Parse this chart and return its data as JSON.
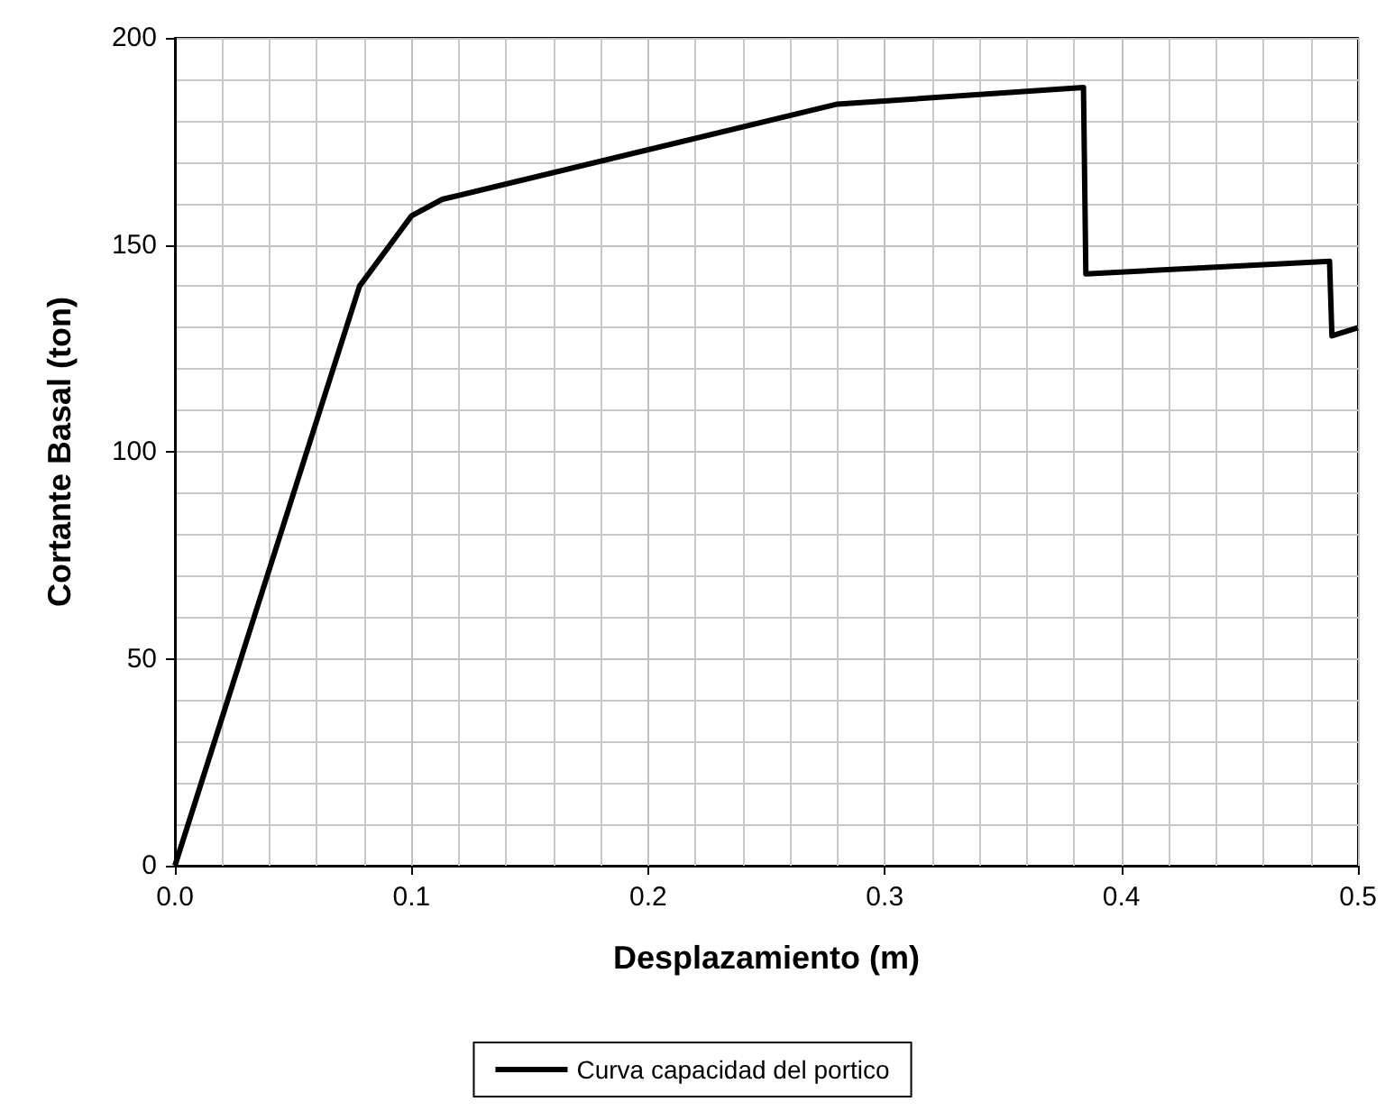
{
  "chart_data": {
    "type": "line",
    "xlabel": "Desplazamiento (m)",
    "ylabel": "Cortante Basal (ton)",
    "series": [
      {
        "name": "Curva capacidad del portico",
        "color": "#000000",
        "x": [
          0,
          0.078,
          0.1,
          0.113,
          0.28,
          0.384,
          0.385,
          0.488,
          0.489,
          0.5
        ],
        "values": [
          0,
          140,
          157,
          161,
          184,
          188,
          143,
          146,
          128,
          130
        ]
      }
    ],
    "xlim": [
      0,
      0.5
    ],
    "xticks": [
      {
        "value": 0,
        "label": "0.0"
      },
      0.1,
      0.2,
      0.3,
      0.4,
      0.5
    ],
    "ylim": [
      0,
      200
    ],
    "yticks": [
      0,
      50,
      100,
      150,
      200
    ],
    "grid": true,
    "legend": "bottom",
    "marker": "none",
    "line_style": "solid"
  }
}
